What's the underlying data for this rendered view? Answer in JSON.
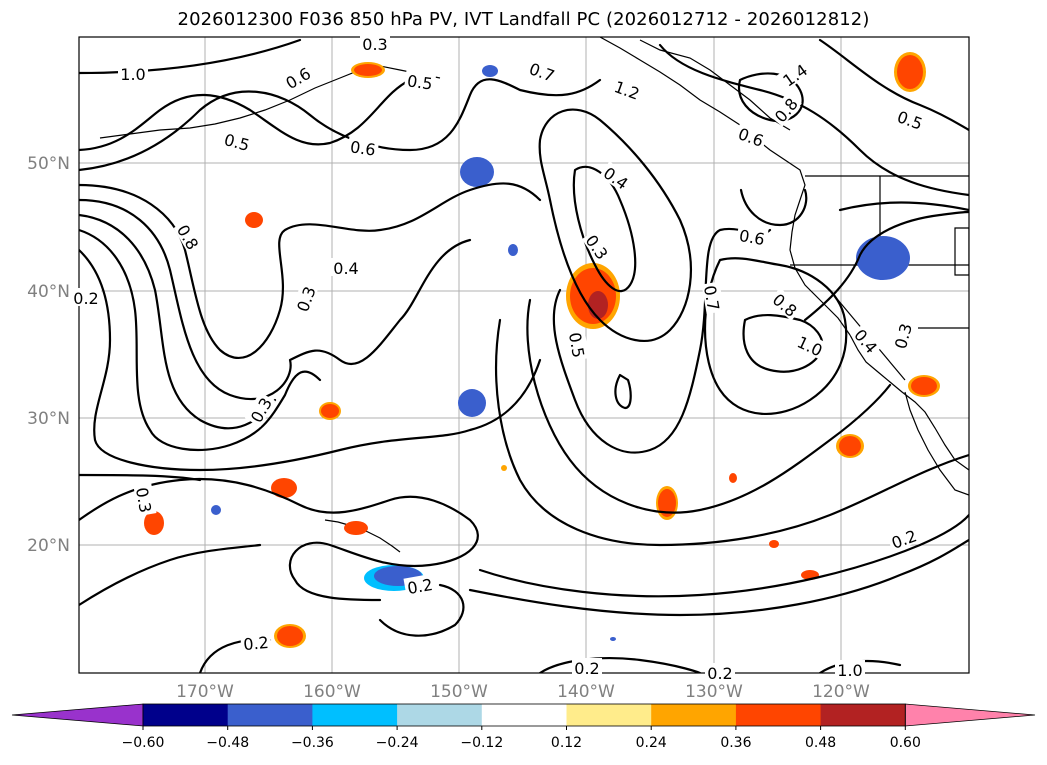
{
  "title": "2026012300 F036 850 hPa PV, IVT Landfall PC (2026012712 - 2026012812)",
  "map": {
    "lat_labels": [
      "50°N",
      "40°N",
      "30°N",
      "20°N"
    ],
    "lon_labels": [
      "170°W",
      "160°W",
      "150°W",
      "140°W",
      "130°W",
      "120°W"
    ],
    "lon_range": [
      -180,
      -110
    ],
    "lat_range": [
      10,
      60
    ]
  },
  "contour_labels": [
    "0.3",
    "0.5",
    "1.0",
    "0.6",
    "0.5",
    "0.6",
    "0.7",
    "1.2",
    "1.4",
    "0.8",
    "0.5",
    "0.6",
    "0.4",
    "0.8",
    "0.3",
    "0.6",
    "0.4",
    "0.7",
    "0.8",
    "1.0",
    "0.4",
    "0.3",
    "0.2",
    "0.3",
    "0.5",
    "0.3",
    "0.3",
    "0.2",
    "0.2",
    "0.2",
    "0.2",
    "0.2",
    "1.0"
  ],
  "colorbar": {
    "ticks": [
      "−0.60",
      "−0.48",
      "−0.36",
      "−0.24",
      "−0.12",
      "0.12",
      "0.24",
      "0.36",
      "0.48",
      "0.60"
    ],
    "colors": [
      "#9932cc",
      "#00008b",
      "#3a5fcd",
      "#00bfff",
      "#add8e6",
      "#ffffff",
      "#ffec8b",
      "#ffa500",
      "#ff4500",
      "#b22222",
      "#ff82ab"
    ]
  }
}
